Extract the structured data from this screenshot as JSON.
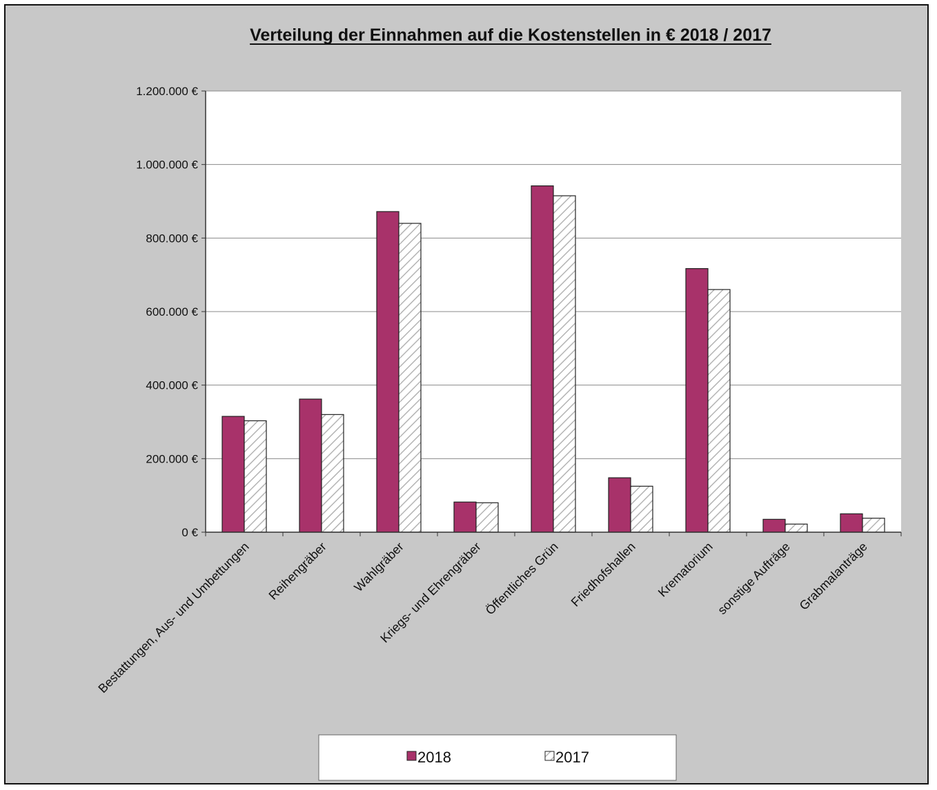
{
  "chart_data": {
    "type": "bar",
    "title": "Verteilung der Einnahmen auf die Kostenstellen in €  2018 / 2017",
    "categories": [
      "Bestattungen, Aus- und Umbettungen",
      "Reihengräber",
      "Wahlgräber",
      "Kriegs- und Ehrengräber",
      "Öffentliches Grün",
      "Friedhofshallen",
      "Krematorium",
      "sonstige Aufträge",
      "Grabmalanträge"
    ],
    "series": [
      {
        "name": "2018",
        "values": [
          315000,
          362000,
          872000,
          82000,
          942000,
          148000,
          717000,
          35000,
          50000
        ],
        "color": "#a8326a",
        "pattern": "solid"
      },
      {
        "name": "2017",
        "values": [
          303000,
          320000,
          840000,
          80000,
          915000,
          125000,
          660000,
          22000,
          38000
        ],
        "color": "#ffffff",
        "pattern": "diagonal-hatch"
      }
    ],
    "ylim": [
      0,
      1200000
    ],
    "yticks": [
      0,
      200000,
      400000,
      600000,
      800000,
      1000000,
      1200000
    ],
    "ytick_labels": [
      "0 €",
      "200.000 €",
      "400.000 €",
      "600.000 €",
      "800.000 €",
      "1.000.000 €",
      "1.200.000 €"
    ],
    "xlabel": "",
    "ylabel": "",
    "grid": true,
    "legend_position": "bottom-center",
    "plot_background": "#ffffff",
    "chart_background": "#c8c8c8"
  }
}
